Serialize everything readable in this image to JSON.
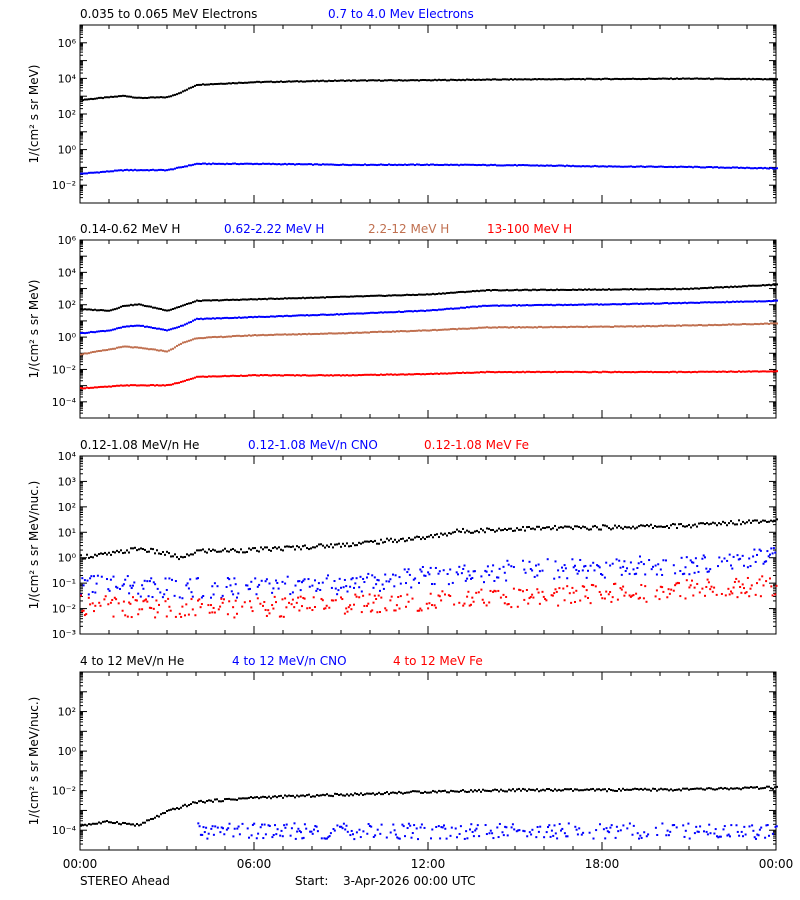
{
  "footer": {
    "spacecraft": "STEREO Ahead",
    "start_label": "Start:",
    "start_value": "3-Apr-2026 00:00 UTC"
  },
  "colors": {
    "black": "#000000",
    "blue": "#0000ff",
    "tan": "#c07050",
    "red": "#ff0000"
  },
  "time_axis": {
    "ticks_hours": [
      0,
      6,
      12,
      18,
      24
    ],
    "tick_labels": [
      "00:00",
      "06:00",
      "12:00",
      "18:00",
      "00:00"
    ],
    "range_hours": [
      0,
      24
    ]
  },
  "chart_data": [
    {
      "type": "scatter",
      "yscale": "log",
      "ylabel": "1/(cm² s sr MeV)",
      "ylim": [
        0.001,
        10000000
      ],
      "ytick_exponents": [
        -2,
        0,
        2,
        4,
        6
      ],
      "series": [
        {
          "name": "0.035 to 0.065 MeV Electrons",
          "color": "#000000",
          "x": [
            0,
            1.5,
            2,
            3,
            3.5,
            4,
            6,
            9,
            12,
            15,
            18,
            21,
            24
          ],
          "y": [
            700,
            1200,
            900,
            1000,
            2000,
            5000,
            7000,
            8500,
            9000,
            10000,
            10500,
            11000,
            10000
          ]
        },
        {
          "name": "0.7 to 4.0 Mev Electrons",
          "color": "#0000ff",
          "x": [
            0,
            1.5,
            3,
            3.5,
            4,
            6,
            9,
            12,
            15,
            18,
            21,
            24
          ],
          "y": [
            0.05,
            0.08,
            0.08,
            0.12,
            0.18,
            0.18,
            0.16,
            0.16,
            0.15,
            0.13,
            0.12,
            0.1
          ]
        }
      ]
    },
    {
      "type": "scatter",
      "yscale": "log",
      "ylabel": "1/(cm² s sr MeV)",
      "ylim": [
        1e-05,
        1000000
      ],
      "ytick_exponents": [
        -4,
        -2,
        0,
        2,
        4,
        6
      ],
      "series": [
        {
          "name": "0.14-0.62 MeV H",
          "color": "#000000",
          "x": [
            0,
            1,
            1.5,
            2,
            3,
            3.5,
            4,
            6,
            9,
            12,
            14,
            18,
            21,
            24
          ],
          "y": [
            60,
            50,
            100,
            120,
            50,
            100,
            200,
            250,
            350,
            500,
            900,
            1000,
            1100,
            2000
          ]
        },
        {
          "name": "0.62-2.22 MeV H",
          "color": "#0000ff",
          "x": [
            0,
            1,
            1.5,
            2,
            3,
            3.5,
            4,
            6,
            9,
            12,
            14,
            18,
            21,
            24
          ],
          "y": [
            2,
            3,
            5,
            6,
            3,
            6,
            15,
            20,
            30,
            50,
            100,
            120,
            150,
            200
          ]
        },
        {
          "name": "2.2-12 MeV H",
          "color": "#c07050",
          "x": [
            0,
            1,
            1.5,
            2,
            3,
            3.5,
            4,
            6,
            9,
            12,
            14,
            18,
            21,
            24
          ],
          "y": [
            0.1,
            0.2,
            0.3,
            0.25,
            0.15,
            0.5,
            1,
            1.5,
            2,
            3,
            4.5,
            5,
            6,
            8
          ]
        },
        {
          "name": "13-100 MeV H",
          "color": "#ff0000",
          "x": [
            0,
            1,
            1.5,
            2,
            3,
            3.5,
            4,
            6,
            9,
            12,
            14,
            18,
            21,
            24
          ],
          "y": [
            0.0008,
            0.001,
            0.0012,
            0.0012,
            0.0012,
            0.002,
            0.004,
            0.005,
            0.005,
            0.006,
            0.008,
            0.008,
            0.008,
            0.009
          ]
        }
      ]
    },
    {
      "type": "scatter",
      "yscale": "log",
      "ylabel": "1/(cm² s sr MeV/nuc.)",
      "ylim": [
        0.001,
        10000
      ],
      "ytick_exponents": [
        -3,
        -2,
        -1,
        0,
        1,
        2,
        3,
        4
      ],
      "ytick_labels": [
        "10⁻³",
        "10⁻²",
        "10⁻¹",
        "10⁰",
        "10¹",
        "10²",
        "10³",
        "10⁴"
      ],
      "series": [
        {
          "name": "0.12-1.08 MeV/n He",
          "color": "#000000",
          "x": [
            0,
            1,
            2,
            3,
            3.5,
            4,
            6,
            9,
            12,
            13,
            15,
            18,
            21,
            24
          ],
          "y": [
            1.2,
            1.5,
            2.5,
            1.5,
            1,
            2,
            2.2,
            3.5,
            7,
            12,
            15,
            17,
            20,
            35
          ]
        },
        {
          "name": "0.12-1.08 MeV/n CNO",
          "color": "#0000ff",
          "x": [
            0,
            1,
            2,
            3,
            4,
            6,
            9,
            12,
            15,
            18,
            21,
            24
          ],
          "y": [
            0.08,
            0.12,
            0.08,
            0.07,
            0.07,
            0.07,
            0.1,
            0.2,
            0.35,
            0.45,
            0.6,
            1.2
          ]
        },
        {
          "name": "0.12-1.08 MeV Fe",
          "color": "#ff0000",
          "x": [
            0,
            2,
            4,
            6,
            9,
            12,
            15,
            18,
            21,
            24
          ],
          "y": [
            0.015,
            0.012,
            0.012,
            0.012,
            0.015,
            0.02,
            0.03,
            0.04,
            0.06,
            0.09
          ]
        }
      ]
    },
    {
      "type": "scatter",
      "yscale": "log",
      "ylabel": "1/(cm² s sr MeV/nuc.)",
      "ylim": [
        1e-05,
        10000
      ],
      "ytick_exponents": [
        -4,
        -2,
        0,
        2
      ],
      "series": [
        {
          "name": "4 to 12 MeV/n He",
          "color": "#000000",
          "x": [
            0,
            1,
            2,
            3,
            4,
            6,
            9,
            12,
            15,
            18,
            21,
            24
          ],
          "y": [
            0.0002,
            0.0003,
            0.0002,
            0.001,
            0.003,
            0.005,
            0.007,
            0.01,
            0.012,
            0.012,
            0.013,
            0.016
          ]
        },
        {
          "name": "4 to 12 MeV/n CNO",
          "color": "#0000ff",
          "x": [
            4,
            6,
            9,
            12,
            15,
            18,
            21,
            24
          ],
          "y": [
            0.0001,
            0.0001,
            0.0001,
            0.0001,
            0.0001,
            0.0001,
            0.0001,
            0.0001
          ]
        },
        {
          "name": "4 to 12 MeV Fe",
          "color": "#ff0000",
          "x": [],
          "y": []
        }
      ]
    }
  ]
}
